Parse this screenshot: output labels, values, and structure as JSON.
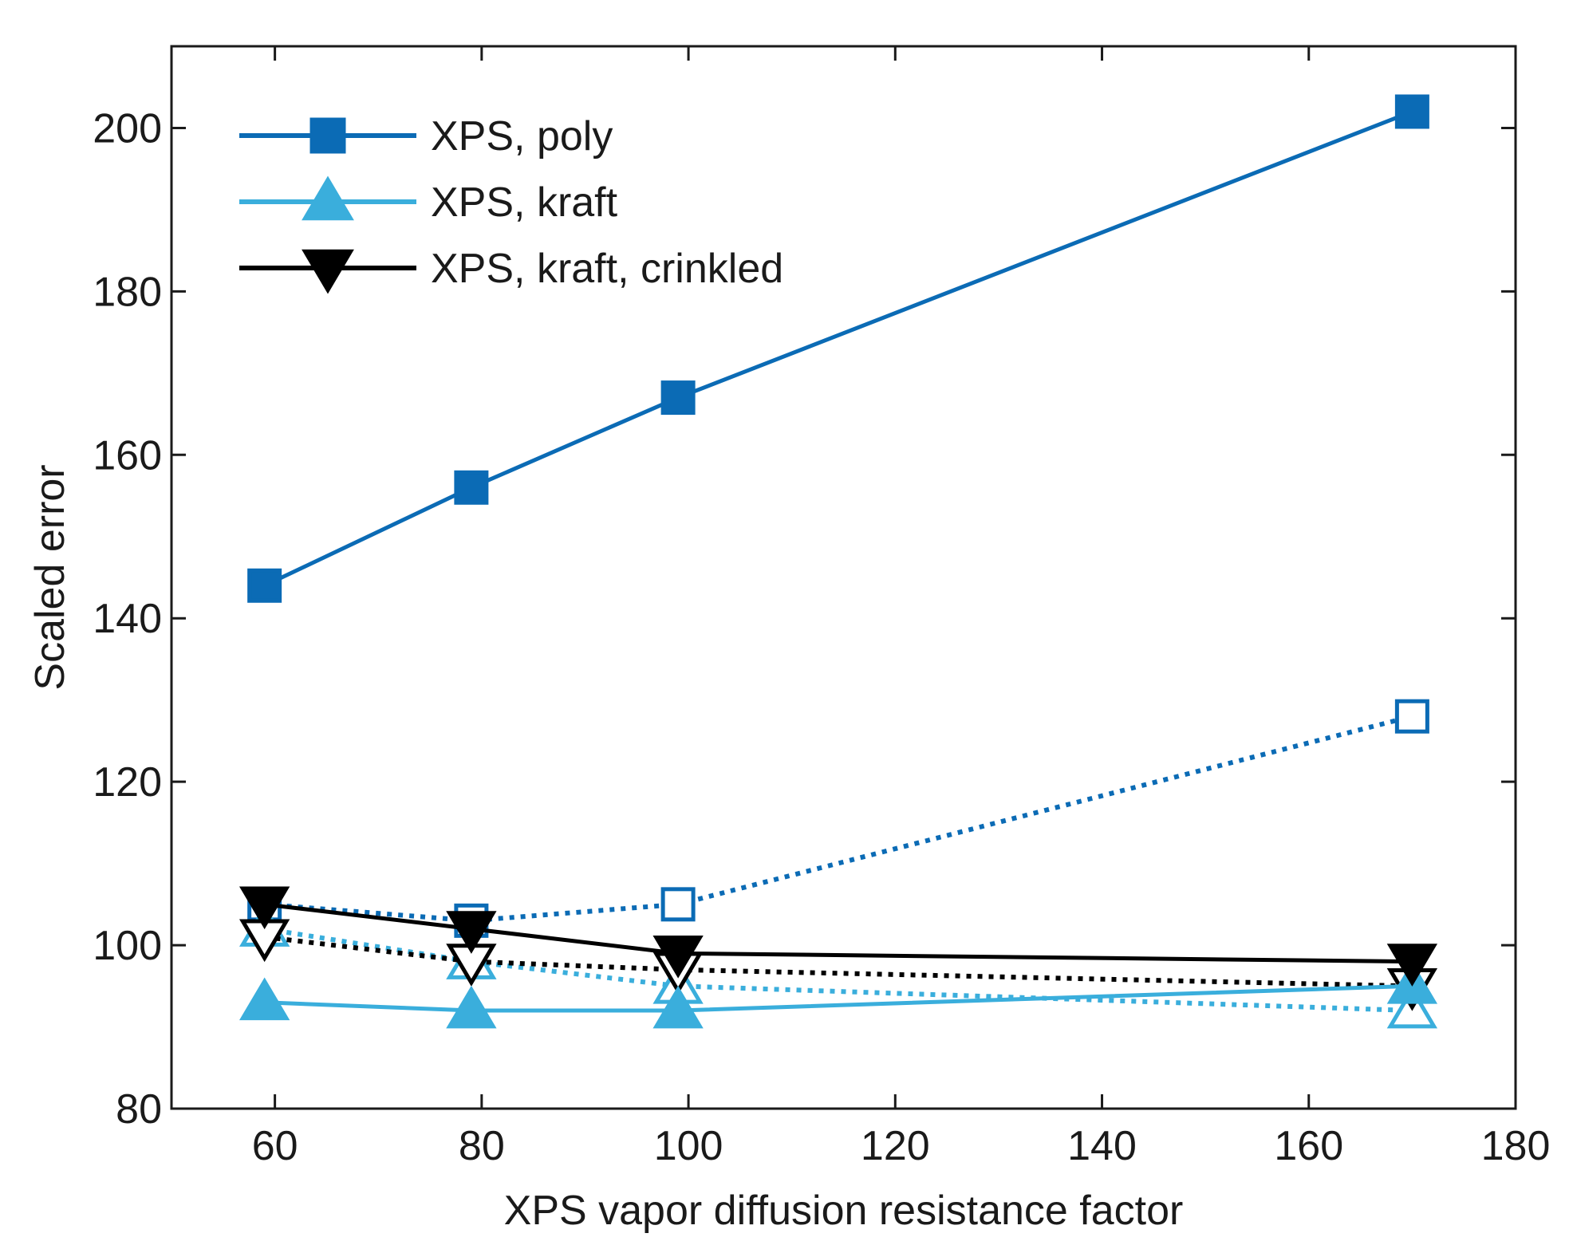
{
  "chart_data": {
    "type": "line",
    "title": "",
    "xlabel": "XPS vapor diffusion resistance factor",
    "ylabel": "Scaled error",
    "xlim": [
      50,
      180
    ],
    "ylim": [
      80,
      210
    ],
    "xticks": [
      60,
      80,
      100,
      120,
      140,
      160,
      180
    ],
    "yticks": [
      80,
      100,
      120,
      140,
      160,
      180,
      200
    ],
    "xtick_labels": [
      "60",
      "80",
      "100",
      "120",
      "140",
      "160",
      "180"
    ],
    "ytick_labels": [
      "80",
      "100",
      "120",
      "140",
      "160",
      "180",
      "200"
    ],
    "grid": false,
    "legend_position": "top-left",
    "series": [
      {
        "name": "XPS, poly",
        "in_legend": true,
        "color": "#0b6bb5",
        "marker": "square",
        "filled": true,
        "line": "solid",
        "x": [
          59,
          79,
          99,
          170
        ],
        "y": [
          144,
          156,
          167,
          202
        ]
      },
      {
        "name": "XPS, kraft",
        "in_legend": true,
        "color": "#3aaedc",
        "marker": "triangle-up",
        "filled": true,
        "line": "solid",
        "x": [
          59,
          79,
          99,
          170
        ],
        "y": [
          93,
          92,
          92,
          95
        ]
      },
      {
        "name": "XPS, kraft, crinkled",
        "in_legend": true,
        "color": "#000000",
        "marker": "triangle-down",
        "filled": true,
        "line": "solid",
        "x": [
          59,
          79,
          99,
          170
        ],
        "y": [
          105,
          102,
          99,
          98
        ]
      },
      {
        "name": "XPS, poly (open)",
        "in_legend": false,
        "color": "#0b6bb5",
        "marker": "square",
        "filled": false,
        "line": "dotted",
        "x": [
          59,
          79,
          99,
          170
        ],
        "y": [
          105,
          103,
          105,
          128
        ]
      },
      {
        "name": "XPS, kraft (open)",
        "in_legend": false,
        "color": "#3aaedc",
        "marker": "triangle-up",
        "filled": false,
        "line": "dotted",
        "x": [
          59,
          79,
          99,
          170
        ],
        "y": [
          102,
          98,
          95,
          92
        ]
      },
      {
        "name": "XPS, kraft, crinkled (open)",
        "in_legend": false,
        "color": "#000000",
        "marker": "triangle-down",
        "filled": false,
        "line": "dotted",
        "x": [
          59,
          79,
          99,
          170
        ],
        "y": [
          101,
          98,
          97,
          95
        ]
      }
    ]
  }
}
